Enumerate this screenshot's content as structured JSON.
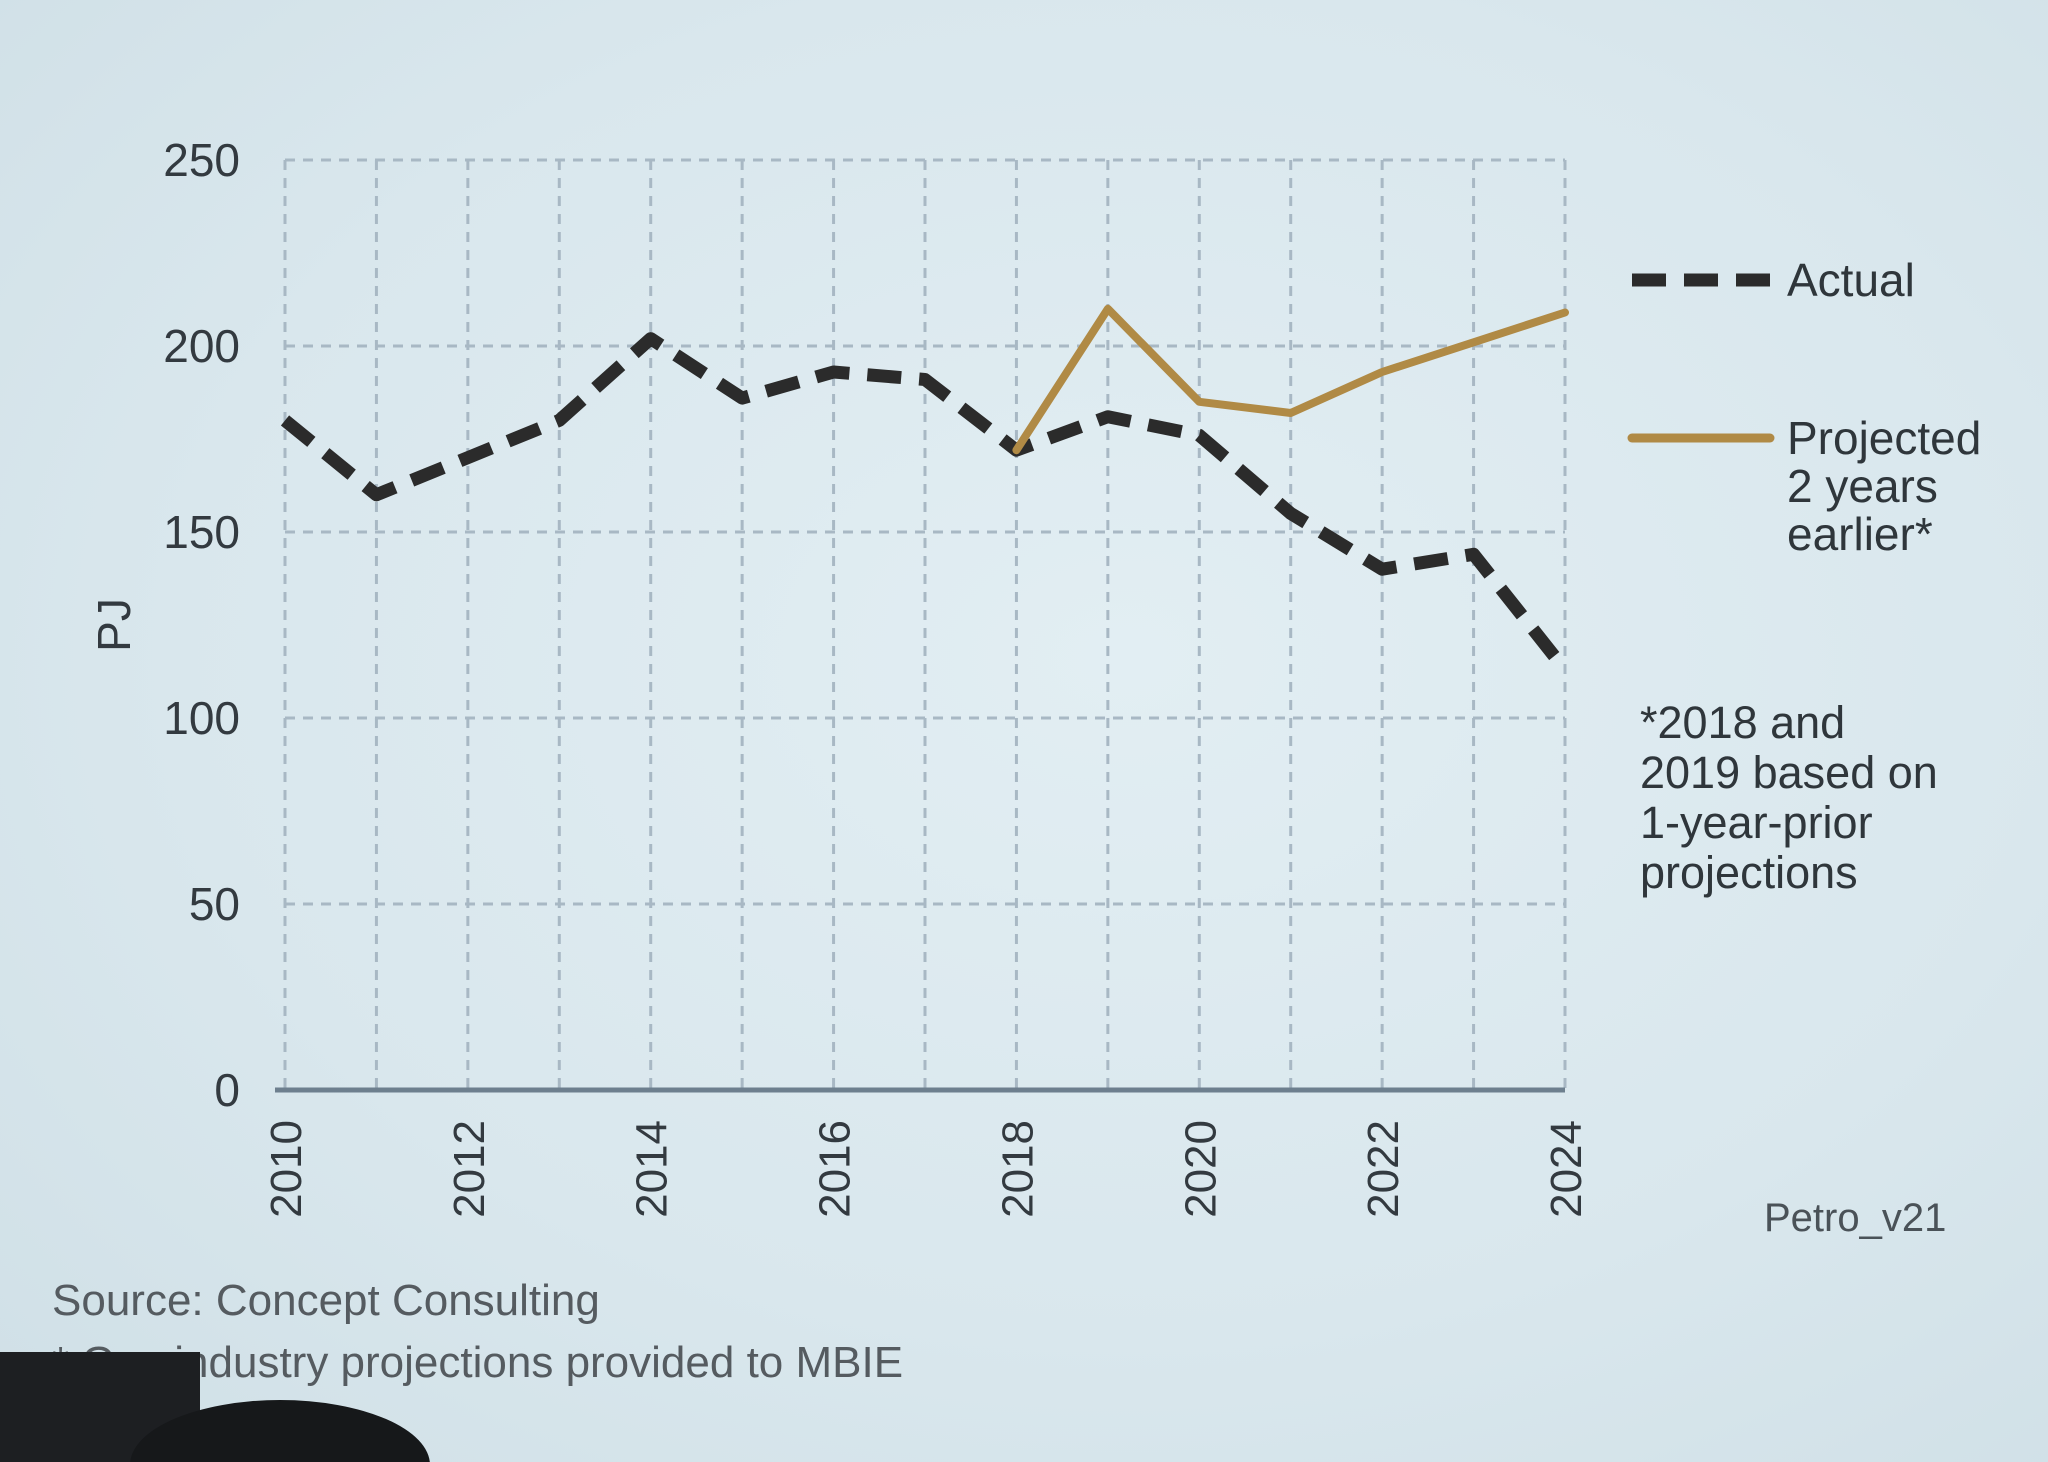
{
  "chart_data": {
    "type": "line",
    "ylabel": "PJ",
    "xlabel": "",
    "ylim": [
      0,
      250
    ],
    "xlim": [
      2010,
      2024
    ],
    "yticks": [
      0,
      50,
      100,
      150,
      200,
      250
    ],
    "xticks": [
      "2010",
      "2012",
      "2014",
      "2016",
      "2018",
      "2020",
      "2022",
      "2024"
    ],
    "grid": true,
    "legend_position": "right",
    "series": [
      {
        "name": "Actual",
        "style": "dashed",
        "color": "#2b2b2b",
        "points": [
          [
            2010,
            180
          ],
          [
            2011,
            160
          ],
          [
            2012,
            170
          ],
          [
            2013,
            180
          ],
          [
            2014,
            202
          ],
          [
            2015,
            186
          ],
          [
            2016,
            193
          ],
          [
            2017,
            191
          ],
          [
            2018,
            172
          ],
          [
            2019,
            181
          ],
          [
            2020,
            176
          ],
          [
            2021,
            155
          ],
          [
            2022,
            140
          ],
          [
            2023,
            144
          ],
          [
            2024,
            113
          ]
        ]
      },
      {
        "name": "Projected\n2 years\nearlier*",
        "style": "solid",
        "color": "#b08a45",
        "points": [
          [
            2018,
            172
          ],
          [
            2019,
            210
          ],
          [
            2020,
            185
          ],
          [
            2021,
            182
          ],
          [
            2022,
            193
          ],
          [
            2023,
            201
          ],
          [
            2024,
            209
          ]
        ]
      }
    ]
  },
  "legend": {
    "actual_label": "Actual",
    "projected_label_lines": [
      "Projected",
      "2 years",
      "earlier*"
    ]
  },
  "note": {
    "lines": [
      "*2018 and",
      "2019 based on",
      "1-year-prior",
      "projections"
    ]
  },
  "version": "Petro_v21",
  "source": "Source: Concept Consulting",
  "footnote": "* Gas industry projections provided to MBIE"
}
